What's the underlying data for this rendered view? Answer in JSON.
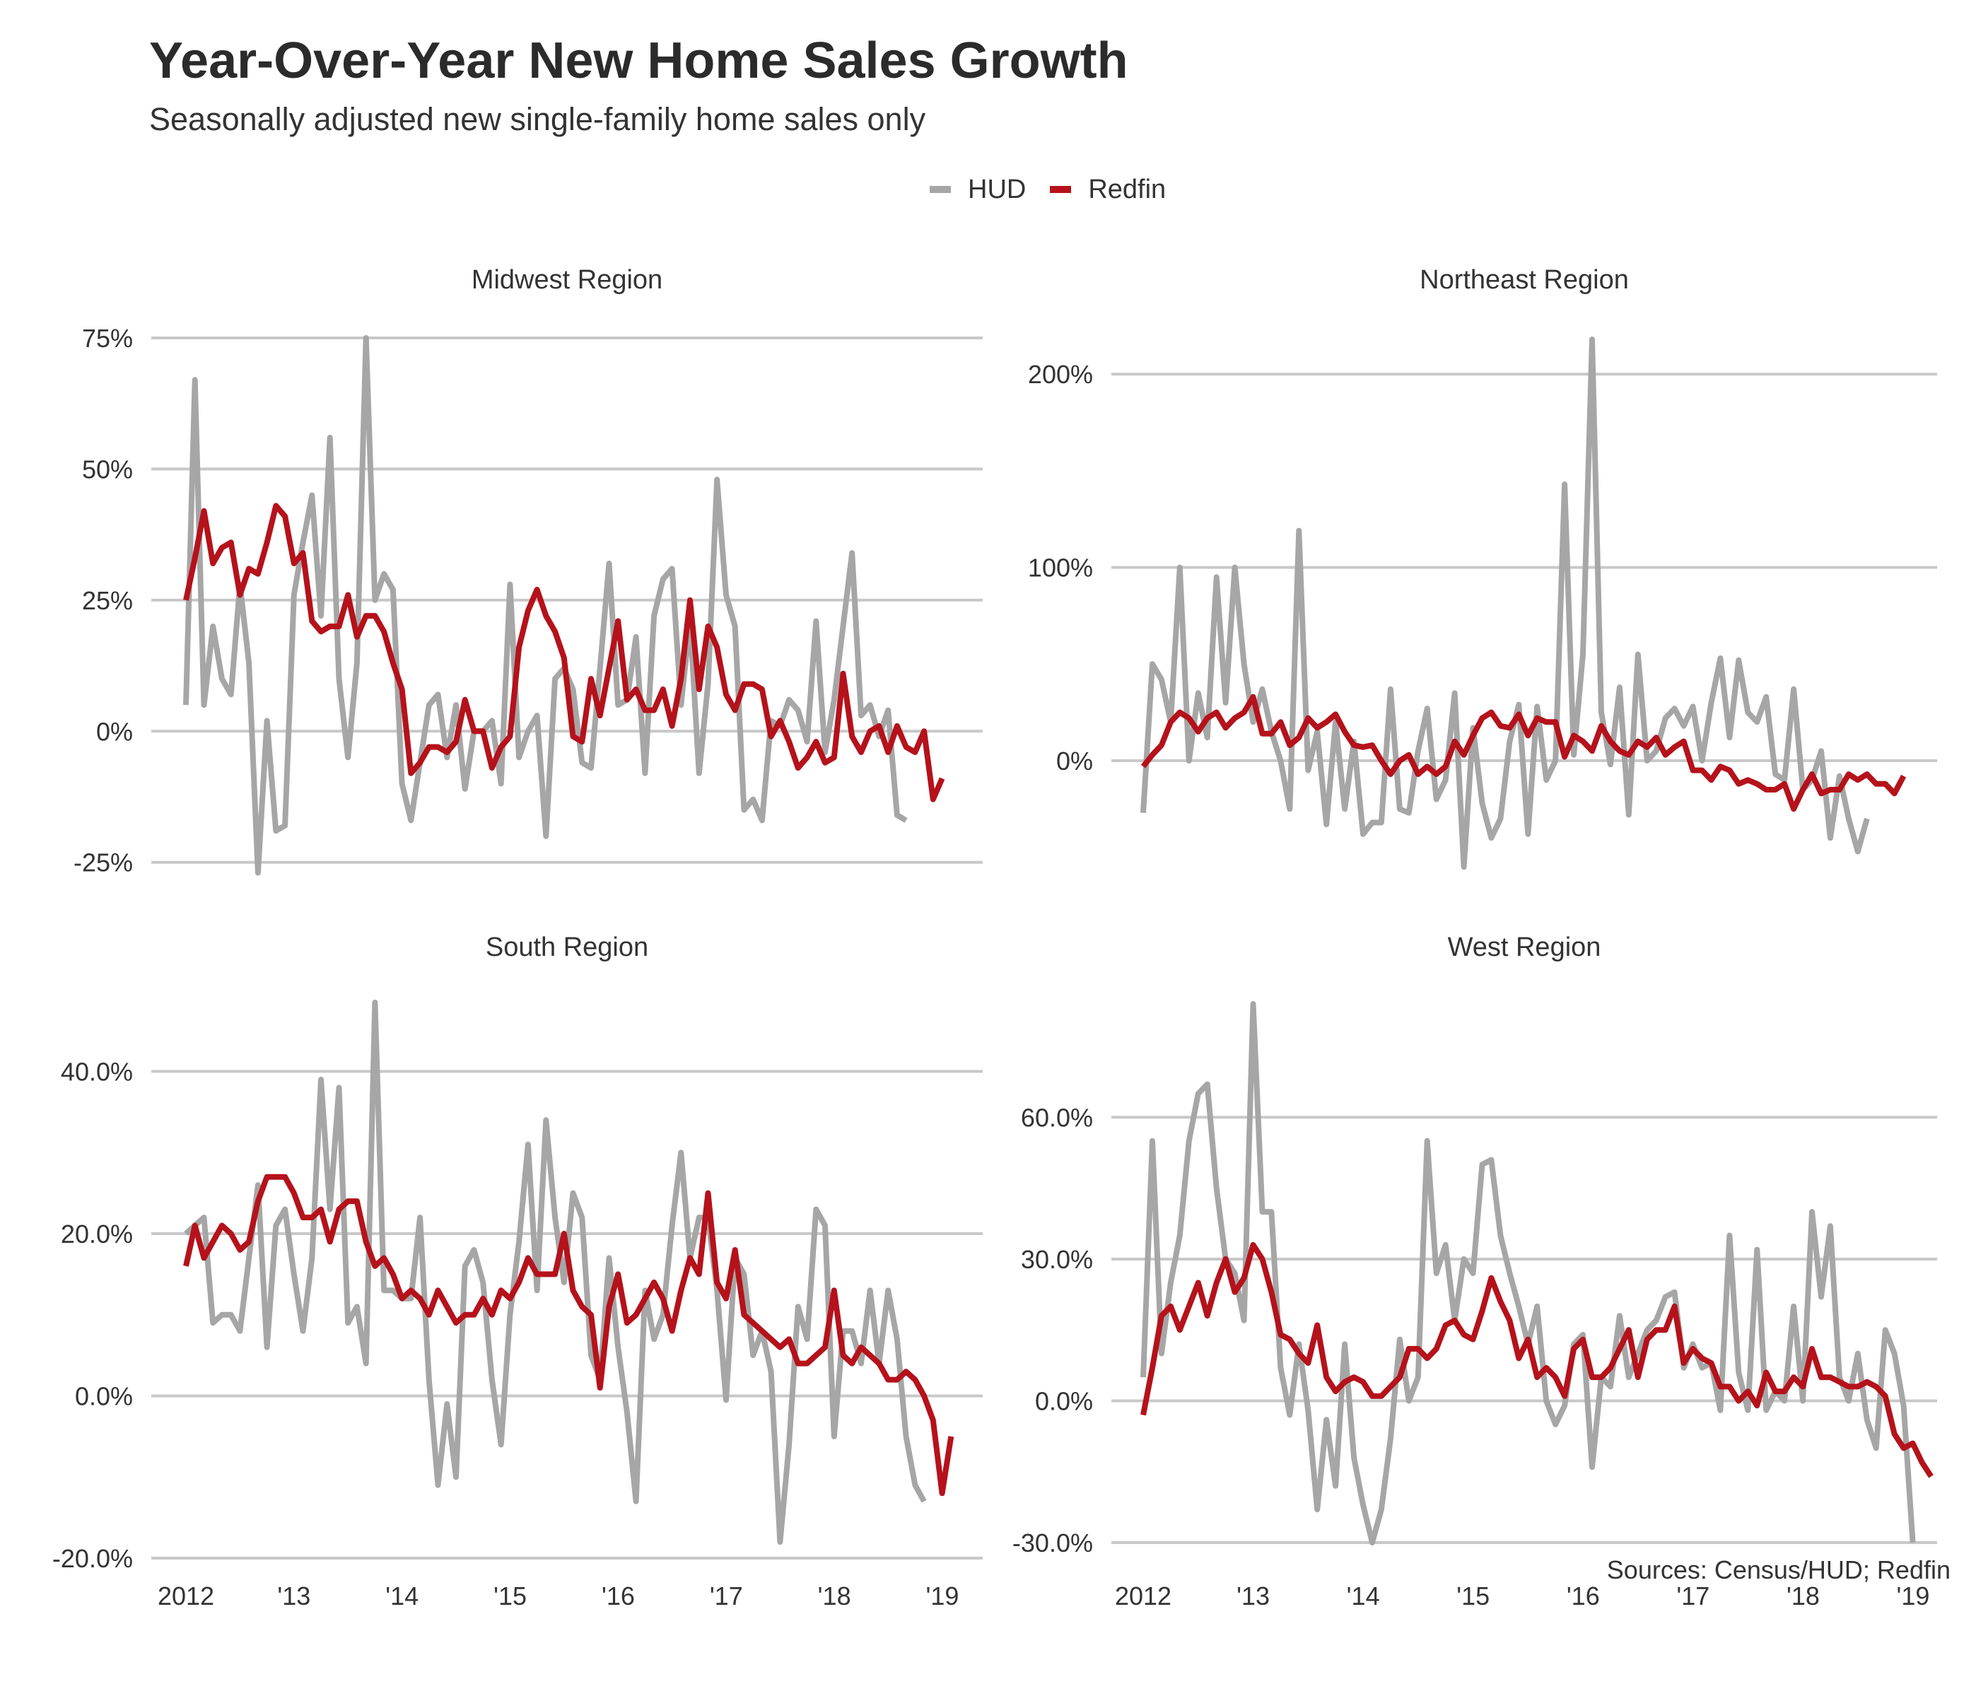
{
  "title": "Year-Over-Year New Home Sales Growth",
  "subtitle": "Seasonally adjusted new single-family home sales only",
  "source": "Sources: Census/HUD; Redfin",
  "legend": [
    {
      "name": "HUD",
      "color": "#a6a6a6"
    },
    {
      "name": "Redfin",
      "color": "#b5121b"
    }
  ],
  "chart_data": [
    {
      "type": "line",
      "title": "Midwest Region",
      "x_ticks": [
        {
          "value": 2012,
          "label": "2012"
        },
        {
          "value": 2013,
          "label": "'13"
        },
        {
          "value": 2014,
          "label": "'14"
        },
        {
          "value": 2015,
          "label": "'15"
        },
        {
          "value": 2016,
          "label": "'16"
        },
        {
          "value": 2017,
          "label": "'17"
        },
        {
          "value": 2018,
          "label": "'18"
        },
        {
          "value": 2019,
          "label": "'19"
        }
      ],
      "y_ticks": [
        {
          "value": -25,
          "label": "-25%"
        },
        {
          "value": 0,
          "label": "0%"
        },
        {
          "value": 25,
          "label": "25%"
        },
        {
          "value": 50,
          "label": "50%"
        },
        {
          "value": 75,
          "label": "75%"
        }
      ],
      "xlim": [
        2011.75,
        2019.25
      ],
      "ylim": [
        -28,
        75
      ],
      "grid": true,
      "legend_position": "top",
      "series": [
        {
          "name": "HUD",
          "x_start": 2012.0,
          "x_step": 0.0833,
          "values": [
            5,
            67,
            5,
            20,
            10,
            7,
            28,
            13,
            -27,
            2,
            -19,
            -18,
            26,
            36,
            45,
            22,
            56,
            10,
            -5,
            13,
            75,
            25,
            30,
            27,
            -10,
            -17,
            -6,
            5,
            7,
            -5,
            5,
            -11,
            0,
            0,
            2,
            -10,
            28,
            -5,
            0,
            3,
            -20,
            10,
            12,
            8,
            -6,
            -7,
            12,
            32,
            5,
            6,
            18,
            -8,
            22,
            29,
            31,
            5,
            21,
            -8,
            9,
            48,
            26,
            20,
            -15,
            -13,
            -17,
            2,
            1,
            6,
            4,
            -2,
            21,
            -4,
            6,
            20,
            34,
            3,
            5,
            -1,
            4,
            -16,
            -17,
            null
          ]
        },
        {
          "name": "Redfin",
          "x_start": 2012.0,
          "x_step": 0.0833,
          "values": [
            25,
            33,
            42,
            32,
            35,
            36,
            26,
            31,
            30,
            36,
            43,
            41,
            32,
            34,
            21,
            19,
            20,
            20,
            26,
            18,
            22,
            22,
            19,
            13,
            8,
            -8,
            -6,
            -3,
            -3,
            -4,
            -2,
            6,
            0,
            0,
            -7,
            -3,
            -1,
            16,
            23,
            27,
            22,
            19,
            14,
            -1,
            -2,
            10,
            3,
            12,
            21,
            6,
            8,
            4,
            4,
            8,
            1,
            10,
            25,
            8,
            20,
            16,
            7,
            4,
            9,
            9,
            8,
            -1,
            2,
            -2,
            -7,
            -5,
            -2,
            -6,
            -5,
            11,
            -1,
            -4,
            0,
            1,
            -4,
            1,
            -3,
            -4,
            0,
            -13,
            -9
          ]
        }
      ]
    },
    {
      "type": "line",
      "title": "Northeast Region",
      "x_ticks": [
        {
          "value": 2012,
          "label": "2012"
        },
        {
          "value": 2013,
          "label": "'13"
        },
        {
          "value": 2014,
          "label": "'14"
        },
        {
          "value": 2015,
          "label": "'15"
        },
        {
          "value": 2016,
          "label": "'16"
        },
        {
          "value": 2017,
          "label": "'17"
        },
        {
          "value": 2018,
          "label": "'18"
        },
        {
          "value": 2019,
          "label": "'19"
        }
      ],
      "y_ticks": [
        {
          "value": 0,
          "label": "0%"
        },
        {
          "value": 100,
          "label": "100%"
        },
        {
          "value": 200,
          "label": "200%"
        }
      ],
      "xlim": [
        2011.75,
        2019.25
      ],
      "ylim": [
        -60,
        218
      ],
      "grid": true,
      "legend_position": "top",
      "series": [
        {
          "name": "HUD",
          "x_start": 2012.0,
          "x_step": 0.0833,
          "values": [
            -27,
            50,
            42,
            20,
            100,
            0,
            35,
            12,
            95,
            30,
            100,
            50,
            20,
            37,
            15,
            0,
            -25,
            119,
            -5,
            15,
            -33,
            20,
            -25,
            10,
            -38,
            -32,
            -32,
            37,
            -25,
            -27,
            5,
            27,
            -20,
            -10,
            35,
            -55,
            17,
            -22,
            -40,
            -30,
            10,
            29,
            -38,
            28,
            -10,
            0,
            143,
            3,
            55,
            218,
            25,
            -2,
            38,
            -28,
            55,
            0,
            5,
            22,
            27,
            18,
            28,
            0,
            30,
            53,
            12,
            52,
            25,
            20,
            33,
            -7,
            -10,
            37,
            -15,
            -10,
            5,
            -40,
            -8,
            -30,
            -47,
            -30,
            null
          ]
        },
        {
          "name": "Redfin",
          "x_start": 2012.0,
          "x_step": 0.0833,
          "values": [
            -3,
            3,
            8,
            20,
            25,
            22,
            15,
            22,
            25,
            17,
            22,
            25,
            33,
            14,
            14,
            20,
            8,
            12,
            22,
            17,
            20,
            24,
            15,
            8,
            7,
            8,
            0,
            -7,
            0,
            3,
            -7,
            -3,
            -7,
            -3,
            10,
            3,
            13,
            22,
            25,
            18,
            17,
            24,
            13,
            22,
            20,
            20,
            2,
            13,
            10,
            5,
            18,
            10,
            5,
            3,
            10,
            7,
            12,
            3,
            7,
            10,
            -5,
            -5,
            -10,
            -3,
            -5,
            -12,
            -10,
            -12,
            -15,
            -15,
            -12,
            -25,
            -15,
            -7,
            -17,
            -15,
            -15,
            -7,
            -10,
            -7,
            -12,
            -12,
            -17,
            -8
          ]
        }
      ]
    },
    {
      "type": "line",
      "title": "South Region",
      "x_ticks": [
        {
          "value": 2012,
          "label": "2012"
        },
        {
          "value": 2013,
          "label": "'13"
        },
        {
          "value": 2014,
          "label": "'14"
        },
        {
          "value": 2015,
          "label": "'15"
        },
        {
          "value": 2016,
          "label": "'16"
        },
        {
          "value": 2017,
          "label": "'17"
        },
        {
          "value": 2018,
          "label": "'18"
        },
        {
          "value": 2019,
          "label": "'19"
        }
      ],
      "y_ticks": [
        {
          "value": -20,
          "label": "-20.0%"
        },
        {
          "value": 0,
          "label": "0.0%"
        },
        {
          "value": 20,
          "label": "20.0%"
        },
        {
          "value": 40,
          "label": "40.0%"
        }
      ],
      "xlim": [
        2011.75,
        2019.25
      ],
      "ylim": [
        -20,
        48.5
      ],
      "grid": true,
      "legend_position": "top",
      "series": [
        {
          "name": "HUD",
          "x_start": 2012.0,
          "x_step": 0.0833,
          "values": [
            20,
            21,
            22,
            9,
            10,
            10,
            8,
            17,
            26,
            6,
            21,
            23,
            15,
            8,
            17,
            39,
            23,
            38,
            9,
            11,
            4,
            48.5,
            13,
            13,
            12,
            12,
            22,
            2,
            -11,
            -1,
            -10,
            16,
            18,
            14,
            2,
            -6,
            10,
            19,
            31,
            13,
            34,
            22,
            14,
            25,
            22,
            5,
            2,
            17,
            6,
            -2,
            -13,
            13,
            7,
            10,
            21,
            30,
            17,
            22,
            22,
            13,
            -0.5,
            17,
            15,
            5,
            8,
            3,
            -18,
            -6,
            11,
            7,
            23,
            21,
            -5,
            8,
            8,
            4,
            13,
            4,
            13,
            7,
            -5,
            -11,
            -13,
            null
          ]
        },
        {
          "name": "Redfin",
          "x_start": 2012.0,
          "x_step": 0.0833,
          "values": [
            16,
            21,
            17,
            19,
            21,
            20,
            18,
            19,
            24,
            27,
            27,
            27,
            25,
            22,
            22,
            23,
            19,
            23,
            24,
            24,
            19,
            16,
            17,
            15,
            12,
            13,
            12,
            10,
            13,
            11,
            9,
            10,
            10,
            12,
            10,
            13,
            12,
            14,
            17,
            15,
            15,
            15,
            20,
            13,
            11,
            10,
            1,
            11,
            15,
            9,
            10,
            12,
            14,
            12,
            8,
            13,
            17,
            15,
            25,
            14,
            12,
            18,
            10,
            9,
            8,
            7,
            6,
            7,
            4,
            4,
            5,
            6,
            13,
            5,
            4,
            6,
            5,
            4,
            2,
            2,
            3,
            2,
            0,
            -3,
            -12,
            -5
          ]
        }
      ]
    },
    {
      "type": "line",
      "title": "West Region",
      "x_ticks": [
        {
          "value": 2012,
          "label": "2012"
        },
        {
          "value": 2013,
          "label": "'13"
        },
        {
          "value": 2014,
          "label": "'14"
        },
        {
          "value": 2015,
          "label": "'15"
        },
        {
          "value": 2016,
          "label": "'16"
        },
        {
          "value": 2017,
          "label": "'17"
        },
        {
          "value": 2018,
          "label": "'18"
        },
        {
          "value": 2019,
          "label": "'19"
        }
      ],
      "y_ticks": [
        {
          "value": -30,
          "label": "-30.0%"
        },
        {
          "value": 0,
          "label": "0.0%"
        },
        {
          "value": 30,
          "label": "30.0%"
        },
        {
          "value": 60,
          "label": "60.0%"
        }
      ],
      "xlim": [
        2011.75,
        2019.25
      ],
      "ylim": [
        -30,
        84
      ],
      "grid": true,
      "legend_position": "top",
      "series": [
        {
          "name": "HUD",
          "x_start": 2012.0,
          "x_step": 0.0833,
          "values": [
            5,
            55,
            10,
            25,
            35,
            55,
            65,
            67,
            45,
            30,
            27,
            17,
            84,
            40,
            40,
            7,
            -3,
            12,
            -2,
            -23,
            -4,
            -18,
            12,
            -12,
            -22,
            -30,
            -23,
            -8,
            13,
            0,
            5,
            55,
            27,
            33,
            17,
            30,
            27,
            50,
            51,
            35,
            27,
            20,
            12,
            20,
            0,
            -5,
            -1,
            12,
            14,
            -14,
            5,
            3,
            18,
            5,
            10,
            15,
            17,
            22,
            23,
            7,
            12,
            7,
            8,
            -2,
            35,
            6,
            -2,
            32,
            -2,
            2,
            0,
            20,
            0,
            40,
            22,
            37,
            5,
            0,
            10,
            -4,
            -10,
            15,
            10,
            -1,
            -30,
            null
          ]
        },
        {
          "name": "Redfin",
          "x_start": 2012.0,
          "x_step": 0.0833,
          "values": [
            -3,
            7,
            18,
            20,
            15,
            20,
            25,
            18,
            25,
            30,
            23,
            26,
            33,
            30,
            23,
            14,
            13,
            10,
            8,
            16,
            5,
            2,
            4,
            5,
            4,
            1,
            1,
            3,
            5,
            11,
            11,
            9,
            11,
            16,
            17,
            14,
            13,
            19,
            26,
            21,
            17,
            9,
            13,
            5,
            7,
            5,
            1,
            11,
            13,
            5,
            5,
            7,
            11,
            15,
            5,
            13,
            15,
            15,
            20,
            8,
            11,
            9,
            8,
            3,
            3,
            0,
            2,
            -1,
            6,
            2,
            2,
            5,
            3,
            11,
            5,
            5,
            4,
            3,
            3,
            4,
            3,
            1,
            -7,
            -10,
            -9,
            -13,
            -16
          ]
        }
      ]
    }
  ]
}
